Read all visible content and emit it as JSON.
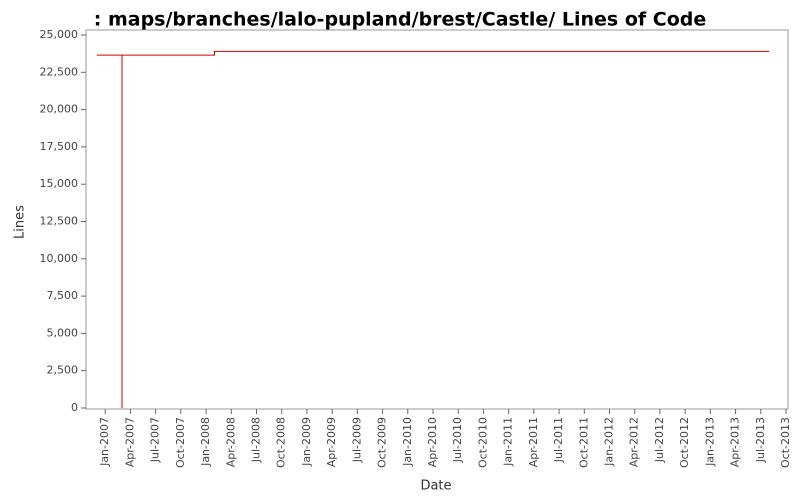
{
  "chart_data": {
    "type": "line",
    "title": ": maps/branches/lalo-pupland/brest/Castle/ Lines of Code",
    "x_label": "Date",
    "y_label": "Lines",
    "x": [
      "2006-12",
      "2007-03",
      "2007-03",
      "2007-03",
      "2008-02",
      "2008-02",
      "2013-08"
    ],
    "series": [
      {
        "name": "Lines",
        "color": "#cc0000",
        "values": [
          23650,
          23650,
          0,
          23650,
          23650,
          23900,
          23900
        ]
      }
    ],
    "xlim": [
      "2006-10",
      "2013-10"
    ],
    "xticks": [
      {
        "value": "2007-01",
        "label": "Jan-2007"
      },
      {
        "value": "2007-04",
        "label": "Apr-2007"
      },
      {
        "value": "2007-07",
        "label": "Jul-2007"
      },
      {
        "value": "2007-10",
        "label": "Oct-2007"
      },
      {
        "value": "2008-01",
        "label": "Jan-2008"
      },
      {
        "value": "2008-04",
        "label": "Apr-2008"
      },
      {
        "value": "2008-07",
        "label": "Jul-2008"
      },
      {
        "value": "2008-10",
        "label": "Oct-2008"
      },
      {
        "value": "2009-01",
        "label": "Jan-2009"
      },
      {
        "value": "2009-04",
        "label": "Apr-2009"
      },
      {
        "value": "2009-07",
        "label": "Jul-2009"
      },
      {
        "value": "2009-10",
        "label": "Oct-2009"
      },
      {
        "value": "2010-01",
        "label": "Jan-2010"
      },
      {
        "value": "2010-04",
        "label": "Apr-2010"
      },
      {
        "value": "2010-07",
        "label": "Jul-2010"
      },
      {
        "value": "2010-10",
        "label": "Oct-2010"
      },
      {
        "value": "2011-01",
        "label": "Jan-2011"
      },
      {
        "value": "2011-04",
        "label": "Apr-2011"
      },
      {
        "value": "2011-07",
        "label": "Jul-2011"
      },
      {
        "value": "2011-10",
        "label": "Oct-2011"
      },
      {
        "value": "2012-01",
        "label": "Jan-2012"
      },
      {
        "value": "2012-04",
        "label": "Apr-2012"
      },
      {
        "value": "2012-07",
        "label": "Jul-2012"
      },
      {
        "value": "2012-10",
        "label": "Oct-2012"
      },
      {
        "value": "2013-01",
        "label": "Jan-2013"
      },
      {
        "value": "2013-04",
        "label": "Apr-2013"
      },
      {
        "value": "2013-07",
        "label": "Jul-2013"
      },
      {
        "value": "2013-10",
        "label": "Oct-2013"
      }
    ],
    "ylim": [
      0,
      25000
    ],
    "yticks": [
      0,
      {
        "value": 2500,
        "label": "2,500"
      },
      {
        "value": 5000,
        "label": "5,000"
      },
      {
        "value": 7500,
        "label": "7,500"
      },
      {
        "value": 10000,
        "label": "10,000"
      },
      {
        "value": 12500,
        "label": "12,500"
      },
      {
        "value": 15000,
        "label": "15,000"
      },
      {
        "value": 17500,
        "label": "17,500"
      },
      {
        "value": 20000,
        "label": "20,000"
      },
      {
        "value": 22500,
        "label": "22,500"
      },
      {
        "value": 25000,
        "label": "25,000"
      }
    ],
    "grid": false
  }
}
